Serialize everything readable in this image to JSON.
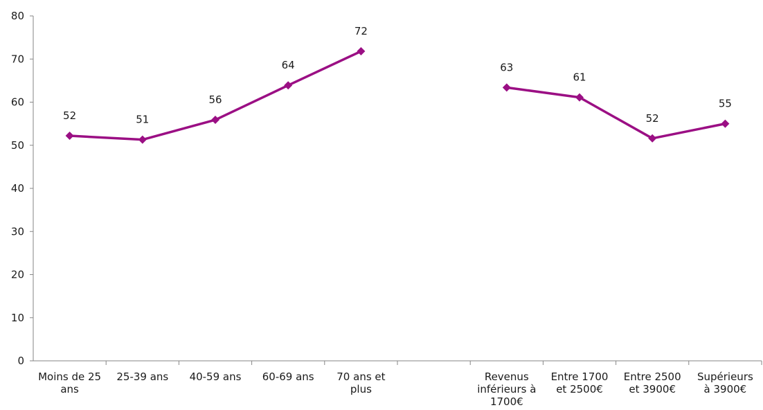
{
  "chart_data": {
    "type": "line",
    "title": "",
    "xlabel": "",
    "ylabel": "",
    "ylim": [
      0,
      80
    ],
    "yticks": [
      0,
      10,
      20,
      30,
      40,
      50,
      60,
      70,
      80
    ],
    "grid": false,
    "legend": "none",
    "categories": [
      [
        "Moins de 25",
        "ans"
      ],
      [
        "25-39 ans"
      ],
      [
        "40-59 ans"
      ],
      [
        "60-69 ans"
      ],
      [
        "70 ans et",
        "plus"
      ],
      [
        ""
      ],
      [
        "Revenus",
        "inférieurs à",
        "1700€"
      ],
      [
        "Entre 1700",
        "et 2500€"
      ],
      [
        "Entre 2500",
        "et 3900€"
      ],
      [
        "Supérieurs",
        "à 3900€"
      ]
    ],
    "series": [
      {
        "color": "#9b0f84",
        "marker": "diamond",
        "values": [
          52.2,
          51.3,
          55.9,
          63.9,
          71.8,
          null,
          63.4,
          61.1,
          51.6,
          55.0
        ],
        "labels": [
          "52",
          "51",
          "56",
          "64",
          "72",
          null,
          "63",
          "61",
          "52",
          "55"
        ]
      }
    ]
  }
}
